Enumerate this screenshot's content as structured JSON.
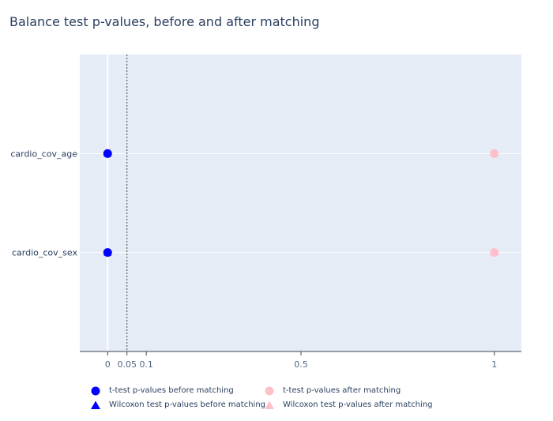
{
  "colors": {
    "plot_bg": "#e5ecf6",
    "grid": "#ffffff",
    "text": "#2a3f5f",
    "before": "#0000ff",
    "after": "#ffc0cb",
    "threshold_line": "#444444"
  },
  "chart_data": {
    "type": "scatter",
    "title": "Balance test p-values, before and after matching",
    "xlabel": "",
    "ylabel": "",
    "xlim": [
      -0.072,
      1.07
    ],
    "x_ticks": [
      {
        "value": 0,
        "label": "0"
      },
      {
        "value": 0.05,
        "label": "0.05"
      },
      {
        "value": 0.1,
        "label": "0.1"
      },
      {
        "value": 0.5,
        "label": "0.5"
      },
      {
        "value": 1,
        "label": "1"
      }
    ],
    "categories": [
      "cardio_cov_age",
      "cardio_cov_sex"
    ],
    "threshold": 0.05,
    "grid": true,
    "legend_position": "bottom",
    "series": [
      {
        "name": "t-test p-values before matching",
        "marker": "circle",
        "color": "#0000ff",
        "values": [
          0,
          0
        ]
      },
      {
        "name": "Wilcoxon test p-values before matching",
        "marker": "triangle",
        "color": "#0000ff",
        "values": [
          0,
          0
        ]
      },
      {
        "name": "t-test p-values after matching",
        "marker": "circle",
        "color": "#ffc0cb",
        "values": [
          1,
          1
        ]
      },
      {
        "name": "Wilcoxon test p-values after matching",
        "marker": "triangle",
        "color": "#ffc0cb",
        "values": [
          1,
          1
        ]
      }
    ]
  }
}
